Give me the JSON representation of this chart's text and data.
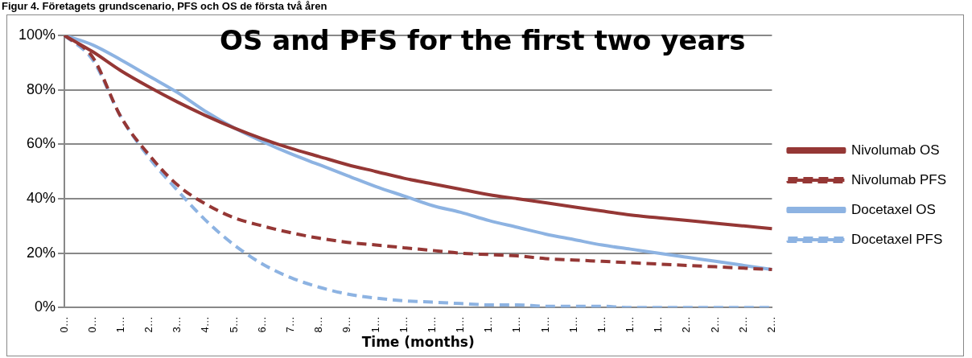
{
  "chart_data": {
    "type": "line",
    "title": "OS and PFS for the first two years",
    "xlabel": "Time (months)",
    "annotations": [
      "Figur 4. Företagets grundscenario, PFS och OS de första två åren"
    ],
    "categories": [
      "0…",
      "0…",
      "1…",
      "2…",
      "3…",
      "4…",
      "5…",
      "6…",
      "7…",
      "8…",
      "9…",
      "1…",
      "1…",
      "1…",
      "1…",
      "1…",
      "1…",
      "1…",
      "1…",
      "1…",
      "1…",
      "1…",
      "2…",
      "2…",
      "2…",
      "2…"
    ],
    "series": [
      {
        "name": "Nivolumab OS",
        "color": "#953735",
        "line_style": "solid",
        "values": [
          100,
          94,
          87,
          81,
          75.5,
          70.5,
          66,
          62,
          58.5,
          55.5,
          52.5,
          50,
          47.5,
          45.5,
          43.5,
          41.5,
          40,
          38.5,
          37,
          35.5,
          34,
          33,
          32,
          31,
          30,
          29
        ]
      },
      {
        "name": "Nivolumab PFS",
        "color": "#953735",
        "line_style": "dashed",
        "values": [
          100,
          92,
          70,
          56,
          45,
          38,
          33,
          30,
          27.5,
          25.5,
          24,
          23,
          22,
          21,
          20,
          19.5,
          19,
          18,
          17.5,
          17,
          16.5,
          16,
          15.5,
          15,
          14.5,
          14
        ]
      },
      {
        "name": "Docetaxel OS",
        "color": "#8db3e2",
        "line_style": "solid",
        "values": [
          100,
          96.5,
          91,
          85,
          79,
          72,
          66,
          61,
          56.5,
          52.5,
          48.5,
          44.5,
          41,
          37.5,
          35,
          32,
          29.5,
          27,
          25,
          23,
          21.5,
          20,
          18.5,
          17,
          15.5,
          14
        ]
      },
      {
        "name": "Docetaxel PFS",
        "color": "#8db3e2",
        "line_style": "dashed",
        "values": [
          100,
          91,
          70,
          55,
          43,
          32,
          23,
          16,
          11,
          7.5,
          5,
          3.5,
          2.5,
          2,
          1.5,
          1,
          1,
          0.5,
          0.5,
          0.5,
          0,
          0,
          0,
          0,
          0,
          0
        ]
      }
    ],
    "ylim": [
      0,
      100
    ],
    "yticks": [
      {
        "value": 0,
        "label": "0%"
      },
      {
        "value": 20,
        "label": "20%"
      },
      {
        "value": 40,
        "label": "40%"
      },
      {
        "value": 60,
        "label": "60%"
      },
      {
        "value": 80,
        "label": "80%"
      },
      {
        "value": 100,
        "label": "100%"
      }
    ],
    "grid": "y",
    "legend": "right",
    "marker": "none"
  }
}
